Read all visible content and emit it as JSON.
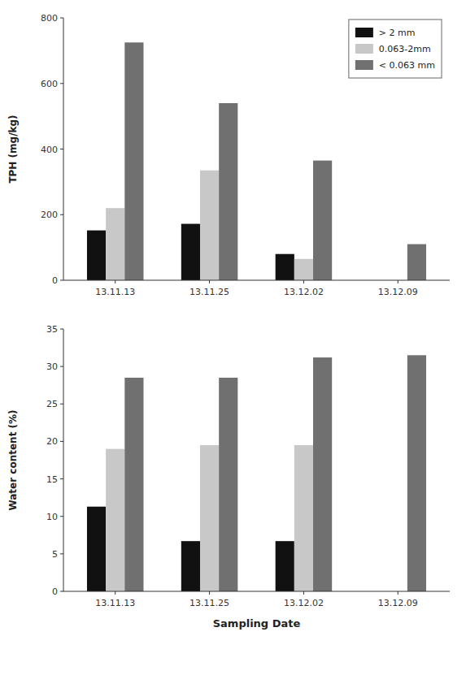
{
  "chart_data": [
    {
      "type": "bar",
      "categories": [
        "13.11.13",
        "13.11.25",
        "13.12.02",
        "13.12.09"
      ],
      "series": [
        {
          "name": "> 2 mm",
          "color": "#111111",
          "values": [
            152,
            172,
            80,
            0
          ]
        },
        {
          "name": "0.063-2mm",
          "color": "#c8c8c8",
          "values": [
            220,
            335,
            65,
            0
          ]
        },
        {
          "name": "< 0.063 mm",
          "color": "#707070",
          "values": [
            725,
            540,
            365,
            110
          ]
        }
      ],
      "y_label": "TPH (mg/kg)",
      "ylim": [
        0,
        800
      ],
      "yticks": [
        0,
        200,
        400,
        600,
        800
      ],
      "grid": false,
      "legend": "upper right"
    },
    {
      "type": "bar",
      "categories": [
        "13.11.13",
        "13.11.25",
        "13.12.02",
        "13.12.09"
      ],
      "series": [
        {
          "color": "#111111",
          "values": [
            11.3,
            6.7,
            6.7,
            0
          ]
        },
        {
          "color": "#c8c8c8",
          "values": [
            19.0,
            19.5,
            19.5,
            0
          ]
        },
        {
          "color": "#707070",
          "values": [
            28.5,
            28.5,
            31.2,
            31.5
          ]
        }
      ],
      "y_label": "Water content (%)",
      "x_label": "Sampling Date",
      "ylim": [
        0,
        35
      ],
      "yticks": [
        0,
        5,
        10,
        15,
        20,
        25,
        30,
        35
      ],
      "grid": false
    }
  ]
}
